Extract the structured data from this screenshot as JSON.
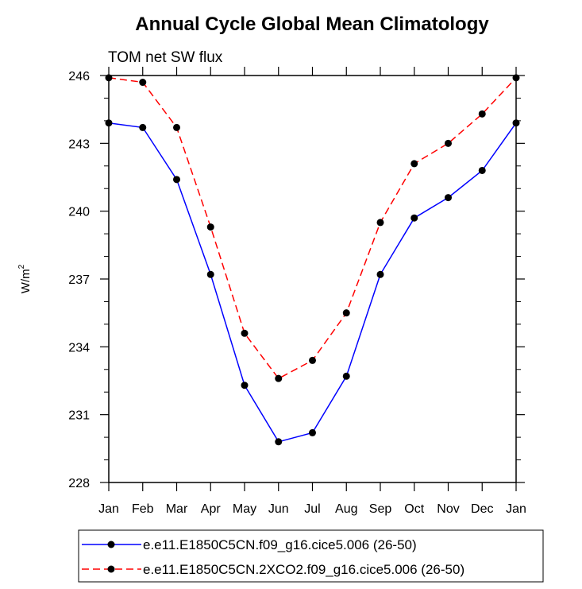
{
  "chart_data": {
    "type": "line",
    "title": "Annual Cycle Global Mean Climatology",
    "subtitle": "TOM net SW flux",
    "xlabel": "",
    "ylabel": "W/m",
    "ylabel_superscript": "2",
    "categories": [
      "Jan",
      "Feb",
      "Mar",
      "Apr",
      "May",
      "Jun",
      "Jul",
      "Aug",
      "Sep",
      "Oct",
      "Nov",
      "Dec",
      "Jan"
    ],
    "ylim": [
      228,
      246
    ],
    "yticks": [
      228,
      231,
      234,
      237,
      240,
      243,
      246
    ],
    "ytick_labels": [
      "228",
      "231",
      "234",
      "237",
      "240",
      "243",
      "246"
    ],
    "grid": false,
    "legend_position": "bottom",
    "series": [
      {
        "name": "e.e11.E1850C5CN.f09_g16.cice5.006 (26-50)",
        "color": "#0000ff",
        "dash": "solid",
        "marker": "filled-circle",
        "values": [
          243.9,
          243.7,
          241.4,
          237.2,
          232.3,
          229.8,
          230.2,
          232.7,
          237.2,
          239.7,
          240.6,
          241.8,
          243.9
        ]
      },
      {
        "name": "e.e11.E1850C5CN.2XCO2.f09_g16.cice5.006 (26-50)",
        "color": "#ff0000",
        "dash": "dashed",
        "marker": "filled-circle",
        "values": [
          245.9,
          245.7,
          243.7,
          239.3,
          234.6,
          232.6,
          233.4,
          235.5,
          239.5,
          242.1,
          243.0,
          244.3,
          245.9
        ]
      }
    ]
  }
}
